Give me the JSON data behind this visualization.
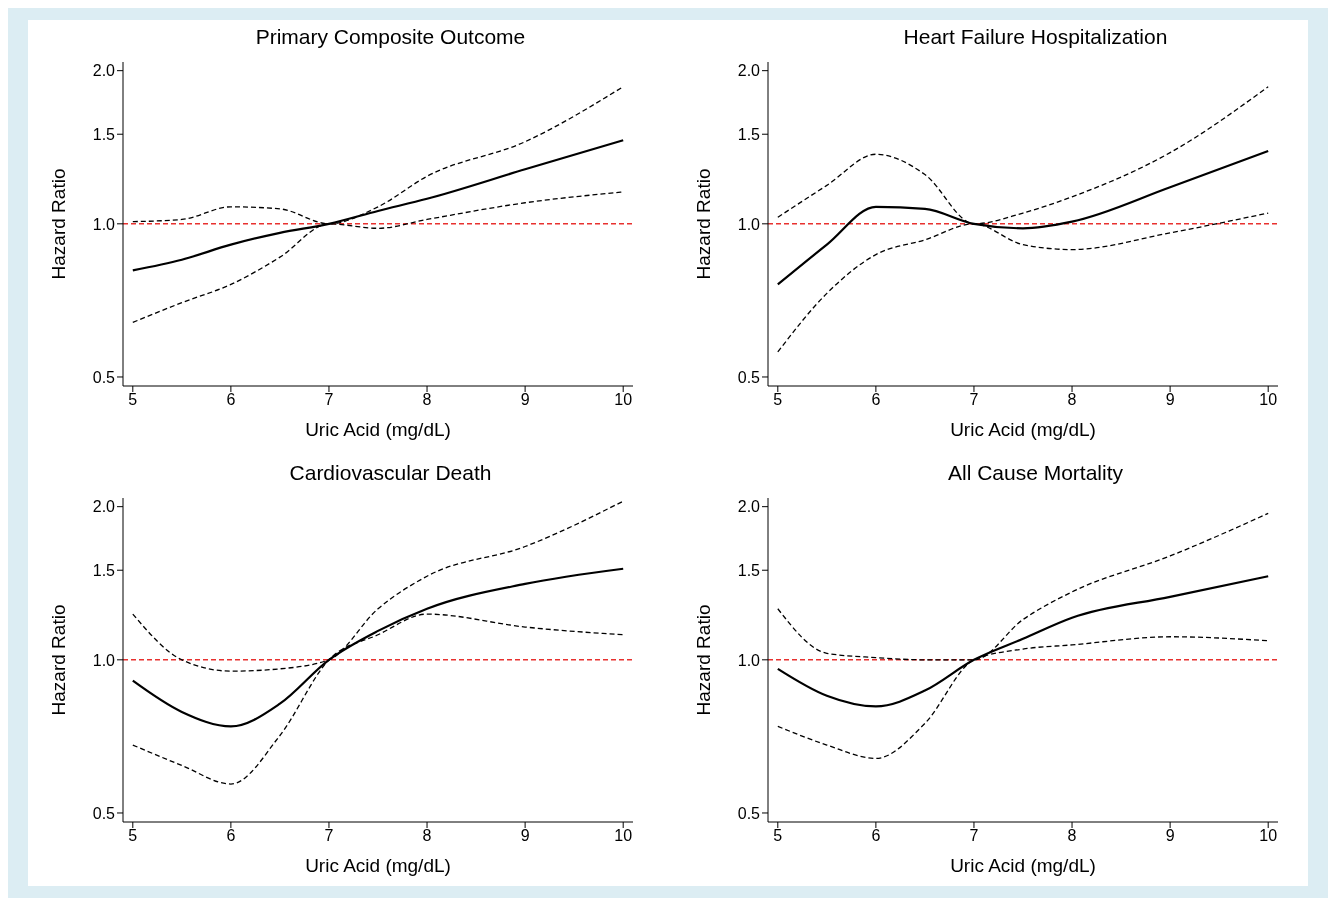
{
  "chart_data": [
    {
      "type": "line",
      "title": "Primary Composite Outcome",
      "xlabel": "Uric Acid (mg/dL)",
      "ylabel": "Hazard Ratio",
      "log": "y",
      "grid": false,
      "x": [
        5,
        5.5,
        6,
        6.5,
        7,
        7.5,
        8,
        9,
        10
      ],
      "xlim": [
        4.9,
        10.1
      ],
      "xticks": [
        5,
        6,
        7,
        8,
        9,
        10
      ],
      "ylim": [
        0.48,
        2.08
      ],
      "yticks": [
        {
          "value": 0.5,
          "label": "0.5"
        },
        {
          "value": 1,
          "label": "1.0"
        },
        {
          "value": 1.5,
          "label": "1.5"
        },
        {
          "value": 2,
          "label": "2.0"
        }
      ],
      "ref_lines": [
        {
          "axis": "y",
          "value": 1,
          "color": "#e8312f",
          "line_style": "dashed"
        }
      ],
      "series": [
        {
          "color": "#000000",
          "line_style": "solid",
          "values": [
            0.81,
            0.85,
            0.91,
            0.96,
            1.0,
            1.06,
            1.12,
            1.28,
            1.46
          ]
        },
        {
          "color": "#000000",
          "line_style": "dashed",
          "values": [
            1.01,
            1.02,
            1.08,
            1.07,
            1.0,
            1.08,
            1.24,
            1.45,
            1.86
          ]
        },
        {
          "color": "#000000",
          "line_style": "dashed",
          "values": [
            0.64,
            0.7,
            0.76,
            0.86,
            1.0,
            0.98,
            1.02,
            1.1,
            1.155
          ]
        }
      ]
    },
    {
      "type": "line",
      "title": "Heart Failure Hospitalization",
      "xlabel": "Uric Acid (mg/dL)",
      "ylabel": "Hazard Ratio",
      "log": "y",
      "grid": false,
      "x": [
        5,
        5.5,
        6,
        6.5,
        7,
        7.5,
        8,
        9,
        10
      ],
      "xlim": [
        4.9,
        10.1
      ],
      "xticks": [
        5,
        6,
        7,
        8,
        9,
        10
      ],
      "ylim": [
        0.48,
        2.08
      ],
      "yticks": [
        {
          "value": 0.5,
          "label": "0.5"
        },
        {
          "value": 1,
          "label": "1.0"
        },
        {
          "value": 1.5,
          "label": "1.5"
        },
        {
          "value": 2,
          "label": "2.0"
        }
      ],
      "ref_lines": [
        {
          "axis": "y",
          "value": 1,
          "color": "#e8312f",
          "line_style": "dashed"
        }
      ],
      "series": [
        {
          "color": "#000000",
          "line_style": "solid",
          "values": [
            0.76,
            0.91,
            1.08,
            1.07,
            1.0,
            0.98,
            1.01,
            1.18,
            1.39
          ]
        },
        {
          "color": "#000000",
          "line_style": "dashed",
          "values": [
            1.03,
            1.19,
            1.37,
            1.25,
            1.0,
            1.05,
            1.13,
            1.38,
            1.86
          ]
        },
        {
          "color": "#000000",
          "line_style": "dashed",
          "values": [
            0.56,
            0.73,
            0.87,
            0.93,
            1.0,
            0.91,
            0.89,
            0.96,
            1.05
          ]
        }
      ]
    },
    {
      "type": "line",
      "title": "Cardiovascular Death",
      "xlabel": "Uric Acid (mg/dL)",
      "ylabel": "Hazard Ratio",
      "log": "y",
      "grid": false,
      "x": [
        5,
        5.5,
        6,
        6.5,
        7,
        7.5,
        8,
        9,
        10
      ],
      "xlim": [
        4.9,
        10.1
      ],
      "xticks": [
        5,
        6,
        7,
        8,
        9,
        10
      ],
      "ylim": [
        0.48,
        2.08
      ],
      "yticks": [
        {
          "value": 0.5,
          "label": "0.5"
        },
        {
          "value": 1,
          "label": "1.0"
        },
        {
          "value": 1.5,
          "label": "1.5"
        },
        {
          "value": 2,
          "label": "2.0"
        }
      ],
      "ref_lines": [
        {
          "axis": "y",
          "value": 1,
          "color": "#e8312f",
          "line_style": "dashed"
        }
      ],
      "series": [
        {
          "color": "#000000",
          "line_style": "solid",
          "values": [
            0.91,
            0.79,
            0.74,
            0.82,
            1.0,
            1.14,
            1.26,
            1.41,
            1.51
          ]
        },
        {
          "color": "#000000",
          "line_style": "dashed",
          "values": [
            1.23,
            1.0,
            0.95,
            0.96,
            1.0,
            1.26,
            1.46,
            1.67,
            2.05
          ]
        },
        {
          "color": "#000000",
          "line_style": "dashed",
          "values": [
            0.68,
            0.62,
            0.57,
            0.71,
            1.0,
            1.12,
            1.23,
            1.16,
            1.12
          ]
        }
      ]
    },
    {
      "type": "line",
      "title": "All Cause Mortality",
      "xlabel": "Uric Acid (mg/dL)",
      "ylabel": "Hazard Ratio",
      "log": "y",
      "grid": false,
      "x": [
        5,
        5.5,
        6,
        6.5,
        7,
        7.5,
        8,
        9,
        10
      ],
      "xlim": [
        4.9,
        10.1
      ],
      "xticks": [
        5,
        6,
        7,
        8,
        9,
        10
      ],
      "ylim": [
        0.48,
        2.08
      ],
      "yticks": [
        {
          "value": 0.5,
          "label": "0.5"
        },
        {
          "value": 1,
          "label": "1.0"
        },
        {
          "value": 1.5,
          "label": "1.5"
        },
        {
          "value": 2,
          "label": "2.0"
        }
      ],
      "ref_lines": [
        {
          "axis": "y",
          "value": 1,
          "color": "#e8312f",
          "line_style": "dashed"
        }
      ],
      "series": [
        {
          "color": "#000000",
          "line_style": "solid",
          "values": [
            0.96,
            0.85,
            0.81,
            0.87,
            1.0,
            1.1,
            1.21,
            1.33,
            1.46
          ]
        },
        {
          "color": "#000000",
          "line_style": "dashed",
          "values": [
            1.26,
            1.03,
            1.01,
            1.0,
            1.0,
            1.2,
            1.36,
            1.6,
            1.94
          ]
        },
        {
          "color": "#000000",
          "line_style": "dashed",
          "values": [
            0.74,
            0.68,
            0.64,
            0.75,
            1.0,
            1.05,
            1.07,
            1.11,
            1.09
          ]
        }
      ]
    }
  ]
}
